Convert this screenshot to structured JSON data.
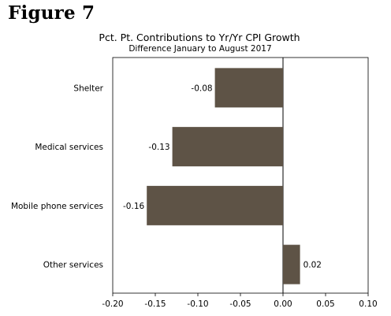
{
  "figure_label": "Figure 7",
  "chart_data": {
    "type": "bar",
    "orientation": "horizontal",
    "title": "Pct. Pt. Contributions to Yr/Yr CPI Growth",
    "subtitle": "Difference January to August 2017",
    "categories": [
      "Shelter",
      "Medical services",
      "Mobile phone services",
      "Other services"
    ],
    "values": [
      -0.08,
      -0.13,
      -0.16,
      0.02
    ],
    "data_labels": [
      "-0.08",
      "-0.13",
      "-0.16",
      "0.02"
    ],
    "xlim": [
      -0.2,
      0.1
    ],
    "xticks": [
      -0.2,
      -0.15,
      -0.1,
      -0.05,
      0.0,
      0.05,
      0.1
    ],
    "xtick_labels": [
      "-0.20",
      "-0.15",
      "-0.10",
      "-0.05",
      "0.00",
      "0.05",
      "0.10"
    ],
    "bar_color": "#5e5346",
    "grid": false,
    "legend": "none"
  }
}
